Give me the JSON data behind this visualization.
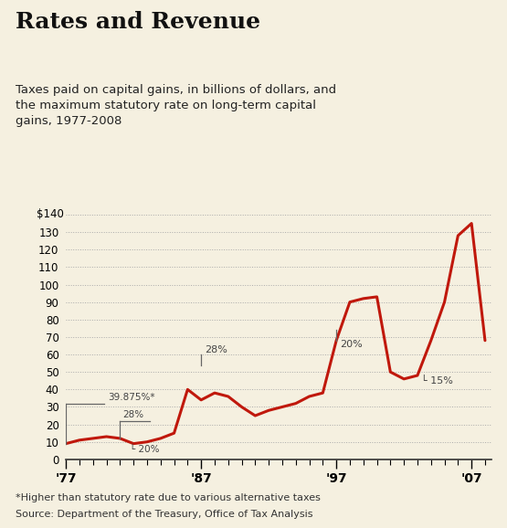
{
  "title": "Rates and Revenue",
  "subtitle": "Taxes paid on capital gains, in billions of dollars, and\nthe maximum statutory rate on long-term capital\ngains, 1977-2008",
  "footnote1": "*Higher than statutory rate due to various alternative taxes",
  "footnote2": "Source: Department of the Treasury, Office of Tax Analysis",
  "years": [
    1977,
    1978,
    1979,
    1980,
    1981,
    1982,
    1983,
    1984,
    1985,
    1986,
    1987,
    1988,
    1989,
    1990,
    1991,
    1992,
    1993,
    1994,
    1995,
    1996,
    1997,
    1998,
    1999,
    2000,
    2001,
    2002,
    2003,
    2004,
    2005,
    2006,
    2007,
    2008
  ],
  "values": [
    9,
    11,
    12,
    13,
    12,
    9,
    10,
    12,
    15,
    40,
    34,
    38,
    36,
    30,
    25,
    28,
    30,
    32,
    36,
    38,
    68,
    90,
    92,
    93,
    50,
    46,
    48,
    68,
    90,
    128,
    135,
    68
  ],
  "line_color": "#c0180c",
  "bg_color": "#f5f0e0",
  "ylim": [
    0,
    145
  ],
  "yticks": [
    0,
    10,
    20,
    30,
    40,
    50,
    60,
    70,
    80,
    90,
    100,
    110,
    120,
    130,
    140
  ],
  "xlim": [
    1977,
    2008.5
  ],
  "xtick_years": [
    1977,
    1987,
    1997,
    2007
  ],
  "xtick_labels": [
    "'77",
    "'87",
    "'97",
    "'07"
  ],
  "ann_color": "#444444",
  "bracket_color": "#666666"
}
